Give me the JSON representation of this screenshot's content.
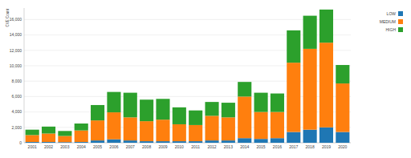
{
  "chart_data": {
    "type": "bar",
    "stacked": true,
    "grid": true,
    "legend": "top-right",
    "y_label": "CVE Count",
    "categories": [
      "2001",
      "2002",
      "2003",
      "2004",
      "2005",
      "2006",
      "2007",
      "2008",
      "2009",
      "2010",
      "2011",
      "2012",
      "2013",
      "2014",
      "2015",
      "2016",
      "2017",
      "2018",
      "2019",
      "2020"
    ],
    "series": [
      {
        "name": "LOW",
        "color": "#1f77b4",
        "values": [
          100,
          100,
          80,
          100,
          300,
          450,
          300,
          200,
          200,
          200,
          200,
          300,
          300,
          600,
          500,
          600,
          1400,
          1700,
          2000,
          1400
        ]
      },
      {
        "name": "MEDIUM",
        "color": "#ff7f0e",
        "values": [
          900,
          1100,
          800,
          1500,
          2600,
          3500,
          3000,
          2600,
          2800,
          2200,
          2100,
          3200,
          3000,
          5400,
          3500,
          3400,
          9000,
          10500,
          11000,
          6300
        ]
      },
      {
        "name": "HIGH",
        "color": "#2ca02c",
        "values": [
          700,
          900,
          650,
          900,
          2000,
          2650,
          3200,
          2800,
          2700,
          2200,
          1900,
          1800,
          1900,
          1900,
          2500,
          2400,
          4200,
          4300,
          4300,
          2400
        ]
      }
    ],
    "ylim": [
      0,
      17500
    ],
    "yticks": [
      0,
      {
        "value": 2000,
        "label": "2,000"
      },
      {
        "value": 4000,
        "label": "4,000"
      },
      {
        "value": 6000,
        "label": "6,000"
      },
      {
        "value": 8000,
        "label": "8,000"
      },
      {
        "value": 10000,
        "label": "10,000"
      },
      {
        "value": 12000,
        "label": "12,000"
      },
      {
        "value": 14000,
        "label": "14,000"
      },
      {
        "value": 16000,
        "label": "16,000"
      }
    ]
  }
}
